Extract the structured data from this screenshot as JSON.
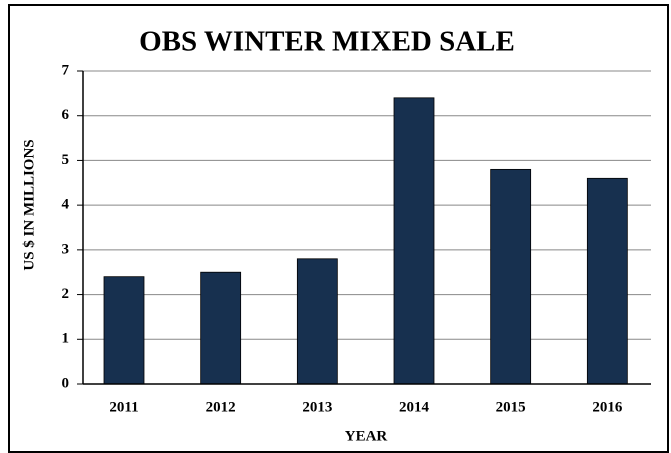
{
  "chart_data": {
    "type": "bar",
    "title": "OBS WINTER MIXED SALE",
    "x_label": "YEAR",
    "y_label": "US $ IN MILLIONS",
    "categories": [
      "2011",
      "2012",
      "2013",
      "2014",
      "2015",
      "2016"
    ],
    "values": [
      2.4,
      2.5,
      2.8,
      6.4,
      4.8,
      4.6
    ],
    "color": "#17304f",
    "ylim": [
      0,
      7
    ],
    "yticks": [
      0,
      1,
      2,
      3,
      4,
      5,
      6,
      7
    ],
    "grid": true
  }
}
